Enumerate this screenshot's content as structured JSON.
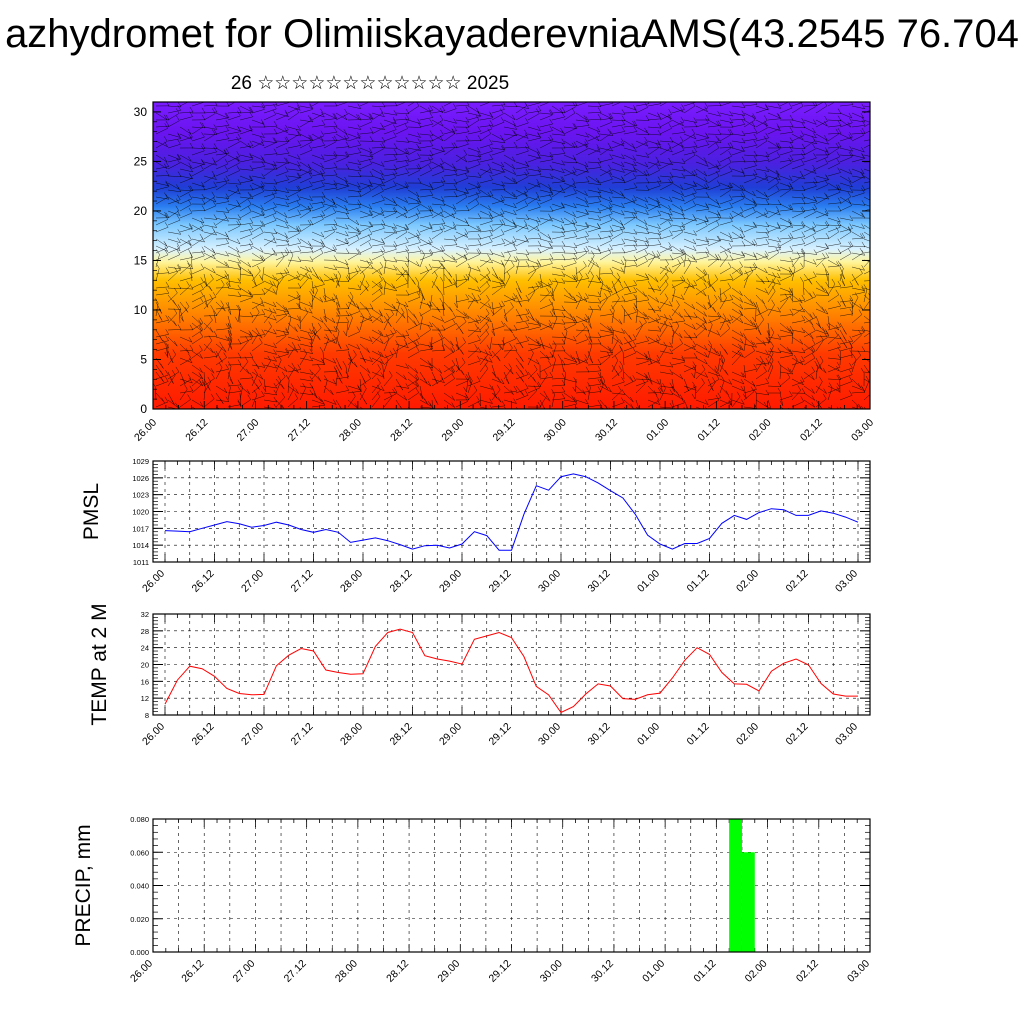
{
  "title": "azhydromet for OlimiiskayaderevniaAMS(43.2545 76.704",
  "subtitle": "26 ☆☆☆☆☆☆☆☆☆☆☆☆ 2025",
  "time_labels": [
    "26.00",
    "26.12",
    "27.00",
    "27.12",
    "28.00",
    "28.12",
    "29.00",
    "29.12",
    "30.00",
    "30.12",
    "01.00",
    "01.12",
    "02.00",
    "02.12",
    "03.00"
  ],
  "colors": {
    "pmsl_line": "#0000ff",
    "temp_line": "#ff0000",
    "precip_bar": "#00ff00",
    "cold": "#6a0dff",
    "warm": "#ff1a00"
  },
  "chart_data": [
    {
      "type": "heatmap",
      "title": "",
      "x_labels": [
        "26.00",
        "26.12",
        "27.00",
        "27.12",
        "28.00",
        "28.12",
        "29.00",
        "29.12",
        "30.00",
        "30.12",
        "01.00",
        "01.12",
        "02.00",
        "02.12",
        "03.00"
      ],
      "y_ticks": [
        0,
        5,
        10,
        15,
        20,
        25,
        30
      ],
      "ylim": [
        0,
        31
      ],
      "overlay": "wind barbs",
      "colormap": "red (bottom) to yellow to light blue to purple (top)"
    },
    {
      "type": "line",
      "ylabel": "PMSL",
      "yticks": [
        1011,
        1014,
        1017,
        1020,
        1023,
        1026,
        1029
      ],
      "ylim": [
        1011,
        1029
      ],
      "grid": true,
      "x_labels": [
        "26.00",
        "26.12",
        "27.00",
        "27.12",
        "28.00",
        "28.12",
        "29.00",
        "29.12",
        "30.00",
        "30.12",
        "01.00",
        "01.12",
        "02.00",
        "02.12",
        "03.00"
      ],
      "series": [
        {
          "values": [
            1016.6,
            1016.5,
            1016.4,
            1017.0,
            1017.6,
            1018.2,
            1017.8,
            1017.2,
            1017.5,
            1018.1,
            1017.6,
            1016.8,
            1016.3,
            1016.8,
            1016.3,
            1014.5,
            1014.9,
            1015.3,
            1014.8,
            1014.1,
            1013.3,
            1013.9,
            1014.0,
            1013.5,
            1014.2,
            1016.4,
            1015.7,
            1013.1,
            1013.1,
            1019.5,
            1024.6,
            1023.8,
            1026.2,
            1026.7,
            1026.2,
            1025.1,
            1023.7,
            1022.4,
            1019.5,
            1015.8,
            1014.2,
            1013.3,
            1014.3,
            1014.3,
            1015.2,
            1017.9,
            1019.3,
            1018.6,
            1019.8,
            1020.5,
            1020.3,
            1019.3,
            1019.3,
            1020.1,
            1019.7,
            1019.0,
            1018.1
          ]
        }
      ]
    },
    {
      "type": "line",
      "ylabel": "TEMP at 2 M",
      "yticks": [
        8,
        12,
        16,
        20,
        24,
        28,
        32
      ],
      "ylim": [
        8,
        32
      ],
      "grid": true,
      "x_labels": [
        "26.00",
        "26.12",
        "27.00",
        "27.12",
        "28.00",
        "28.12",
        "29.00",
        "29.12",
        "30.00",
        "30.12",
        "01.00",
        "01.12",
        "02.00",
        "02.12",
        "03.00"
      ],
      "series": [
        {
          "values": [
            10.6,
            16.3,
            19.6,
            19.0,
            17.2,
            14.3,
            13.1,
            12.8,
            12.9,
            19.7,
            22.2,
            23.8,
            23.2,
            18.7,
            18.1,
            17.7,
            17.8,
            24.3,
            27.6,
            28.4,
            27.6,
            22.1,
            21.3,
            20.8,
            20.1,
            26.0,
            26.8,
            27.6,
            26.4,
            21.9,
            14.8,
            12.8,
            8.6,
            10.0,
            13.0,
            15.4,
            14.9,
            11.9,
            11.7,
            12.8,
            13.2,
            16.8,
            21.0,
            24.0,
            22.4,
            18.1,
            15.4,
            15.3,
            13.7,
            18.4,
            20.3,
            21.3,
            19.9,
            15.5,
            13.0,
            12.5,
            12.5
          ]
        }
      ]
    },
    {
      "type": "bar",
      "ylabel": "PRECIP, mm",
      "yticks": [
        "0.000",
        "0.020",
        "0.040",
        "0.060",
        "0.080"
      ],
      "ylim": [
        0,
        0.08
      ],
      "grid": true,
      "x_labels": [
        "26.00",
        "26.12",
        "27.00",
        "27.12",
        "28.00",
        "28.12",
        "29.00",
        "29.12",
        "30.00",
        "30.12",
        "01.00",
        "01.12",
        "02.00",
        "02.12",
        "03.00"
      ],
      "bars": [
        {
          "start_index": 45,
          "end_index": 46,
          "value": 0.08
        },
        {
          "start_index": 46,
          "end_index": 47,
          "value": 0.06
        }
      ]
    }
  ]
}
